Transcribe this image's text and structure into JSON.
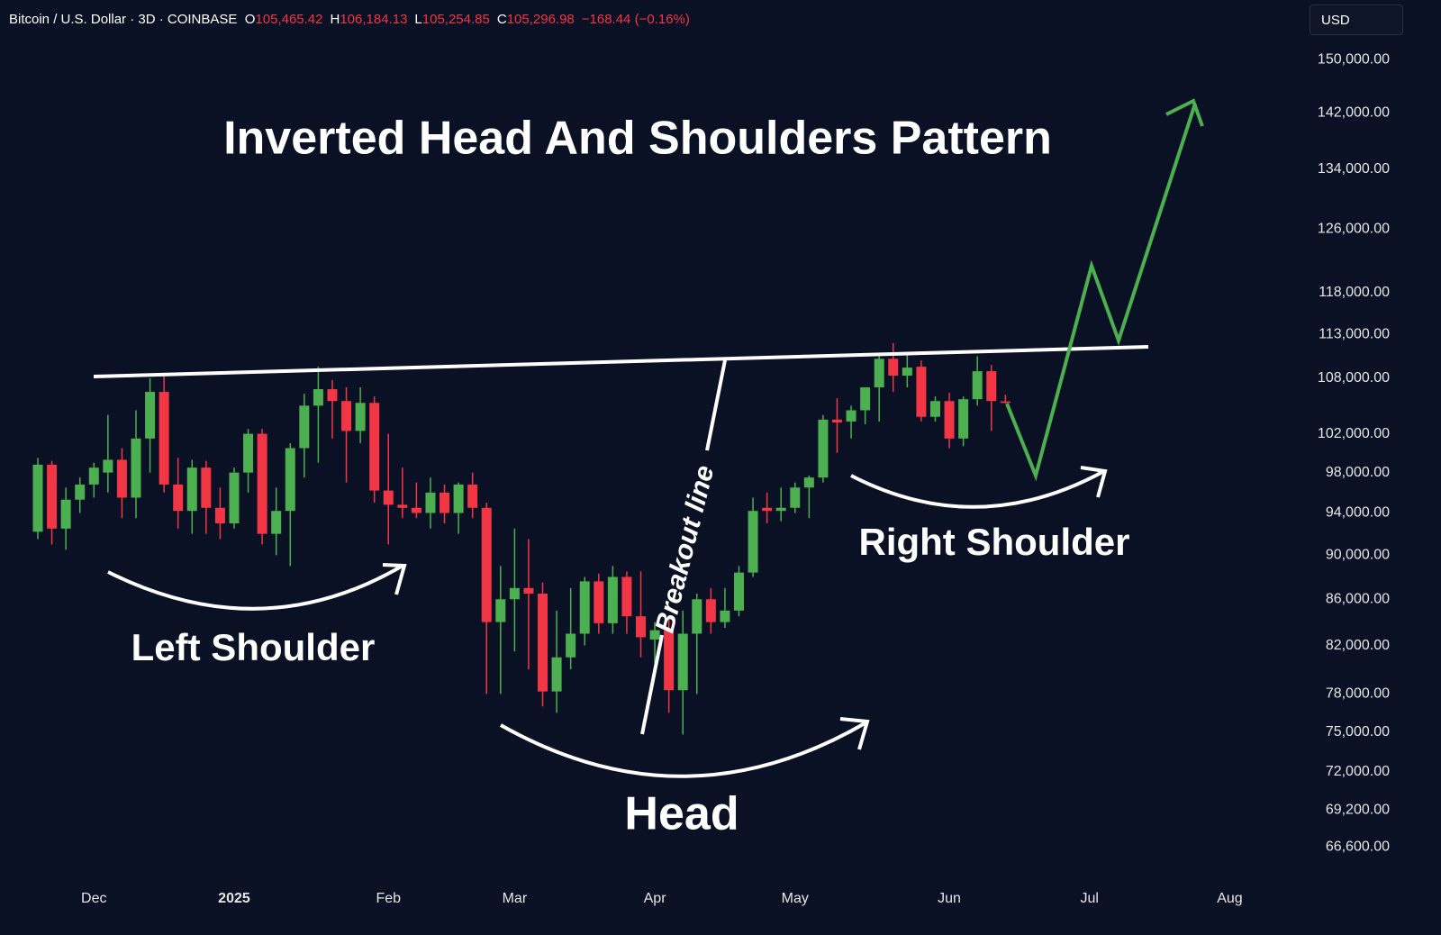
{
  "header": {
    "symbol": "Bitcoin / U.S. Dollar · 3D · COINBASE",
    "open_label": "O",
    "open": "105,465.42",
    "high_label": "H",
    "high": "106,184.13",
    "low_label": "L",
    "low": "105,254.85",
    "close_label": "C",
    "close": "105,296.98",
    "change": "−168.44 (−0.16%)",
    "currency": "USD"
  },
  "chart_data": {
    "type": "candlestick",
    "title": "Inverted Head And Shoulders Pattern",
    "annotations": {
      "left": "Left Shoulder",
      "head": "Head",
      "right": "Right Shoulder",
      "breakout": "Breakout line"
    },
    "up_color": "#4caf50",
    "down_color": "#f23645",
    "log_scale": true,
    "categories": [
      null,
      null,
      null,
      null,
      "Dec",
      null,
      null,
      null,
      null,
      null,
      null,
      null,
      null,
      null,
      "2025",
      null,
      null,
      null,
      null,
      null,
      null,
      null,
      null,
      null,
      null,
      "Feb",
      null,
      null,
      null,
      null,
      null,
      null,
      null,
      null,
      "Mar",
      null,
      null,
      null,
      null,
      null,
      null,
      null,
      null,
      null,
      "Apr",
      null,
      null,
      null,
      null,
      null,
      null,
      null,
      null,
      null,
      "May",
      null,
      null,
      null,
      null,
      null,
      null,
      null,
      null,
      null,
      null,
      "Jun",
      null,
      null,
      null,
      null,
      null,
      null,
      null,
      null,
      null,
      "Jul",
      null,
      null,
      null,
      null,
      null,
      null,
      null,
      null,
      null,
      "Aug"
    ],
    "open": [
      92200,
      98800,
      92500,
      95300,
      96800,
      98000,
      99300,
      95500,
      101500,
      106500,
      96800,
      94200,
      98500,
      94500,
      93000,
      98000,
      102000,
      92000,
      94200,
      100500,
      105000,
      106800,
      105500,
      102300,
      105300,
      96200,
      94800,
      94500,
      94000,
      96000,
      94000,
      96800,
      94500,
      84000,
      86000,
      87000,
      86500,
      78200,
      81000,
      83000,
      87600,
      83900,
      88000,
      84500,
      82500,
      83300,
      78300,
      83000,
      86000,
      84000,
      85000,
      88400,
      94500,
      94200,
      94500,
      96500,
      97500,
      103500,
      103300,
      104500,
      107000,
      110200,
      108300,
      109300,
      103800,
      105500,
      101500,
      105700,
      108800,
      105465.42,
      null,
      null,
      null,
      null,
      null,
      null,
      null,
      null,
      null,
      null,
      null,
      null,
      null,
      null,
      null,
      null
    ],
    "high": [
      99500,
      99200,
      96500,
      97500,
      99000,
      104000,
      100500,
      104500,
      108000,
      108500,
      99500,
      99300,
      99200,
      96500,
      98500,
      102500,
      102500,
      96500,
      101000,
      106300,
      109300,
      107800,
      107000,
      107000,
      106000,
      102000,
      98500,
      97000,
      97500,
      96800,
      97000,
      98000,
      95000,
      89000,
      92500,
      91500,
      87500,
      85000,
      87000,
      88000,
      88300,
      89000,
      88500,
      88500,
      84000,
      84500,
      85000,
      86500,
      87000,
      87000,
      89000,
      95500,
      96000,
      96500,
      97000,
      97700,
      104000,
      105800,
      105000,
      107000,
      110600,
      112000,
      110700,
      110000,
      106000,
      106400,
      106000,
      110500,
      109500,
      106184.13,
      null,
      null,
      null,
      null,
      null,
      null,
      null,
      null,
      null,
      null,
      null,
      null,
      null,
      null,
      null,
      null
    ],
    "low": [
      91500,
      91000,
      90500,
      94000,
      95500,
      96000,
      93500,
      93500,
      98000,
      96000,
      92500,
      92000,
      92000,
      91500,
      92500,
      96000,
      91000,
      90000,
      89000,
      97500,
      99000,
      101500,
      97000,
      101000,
      95000,
      91000,
      93500,
      93500,
      92500,
      93000,
      92000,
      93500,
      78000,
      78000,
      81500,
      80000,
      77000,
      76500,
      80000,
      82000,
      83000,
      83000,
      83000,
      81000,
      80500,
      76500,
      74800,
      78000,
      83000,
      83500,
      84500,
      88000,
      93000,
      93200,
      94000,
      93500,
      97000,
      100000,
      101500,
      103000,
      103300,
      106500,
      107000,
      103300,
      103300,
      100500,
      100700,
      105000,
      102300,
      105254.85,
      null,
      null,
      null,
      null,
      null,
      null,
      null,
      null,
      null,
      null,
      null,
      null,
      null,
      null,
      null,
      null
    ],
    "close": [
      98800,
      92500,
      95300,
      96800,
      98500,
      99300,
      95500,
      101500,
      106500,
      96800,
      94200,
      98500,
      94500,
      93000,
      98000,
      102000,
      92000,
      94200,
      100500,
      105000,
      106800,
      105500,
      102300,
      105300,
      96200,
      94800,
      94500,
      94000,
      96000,
      94000,
      96800,
      94500,
      84000,
      86000,
      87000,
      86500,
      78200,
      81000,
      83000,
      87600,
      83900,
      88000,
      84500,
      82700,
      83300,
      78300,
      83000,
      86000,
      84000,
      85000,
      88400,
      94200,
      94200,
      94500,
      96500,
      97500,
      103500,
      103200,
      104500,
      107000,
      110200,
      108300,
      109200,
      103800,
      105500,
      101500,
      105700,
      108800,
      105500,
      105296.98,
      null,
      null,
      null,
      null,
      null,
      null,
      null,
      null,
      null,
      null,
      null,
      null,
      null,
      null,
      null,
      null
    ],
    "ylim": [
      64500,
      153000
    ],
    "yticks": [
      {
        "value": 150000,
        "label": "150,000.00"
      },
      {
        "value": 142000,
        "label": "142,000.00"
      },
      {
        "value": 134000,
        "label": "134,000.00"
      },
      {
        "value": 126000,
        "label": "126,000.00"
      },
      {
        "value": 118000,
        "label": "118,000.00"
      },
      {
        "value": 113000,
        "label": "113,000.00"
      },
      {
        "value": 108000,
        "label": "108,000.00"
      },
      {
        "value": 102000,
        "label": "102,000.00"
      },
      {
        "value": 98000,
        "label": "98,000.00"
      },
      {
        "value": 94000,
        "label": "94,000.00"
      },
      {
        "value": 90000,
        "label": "90,000.00"
      },
      {
        "value": 86000,
        "label": "86,000.00"
      },
      {
        "value": 82000,
        "label": "82,000.00"
      },
      {
        "value": 78000,
        "label": "78,000.00"
      },
      {
        "value": 75000,
        "label": "75,000.00"
      },
      {
        "value": 72000,
        "label": "72,000.00"
      },
      {
        "value": 69200,
        "label": "69,200.00"
      },
      {
        "value": 66600,
        "label": "66,600.00"
      }
    ],
    "grid": false
  }
}
